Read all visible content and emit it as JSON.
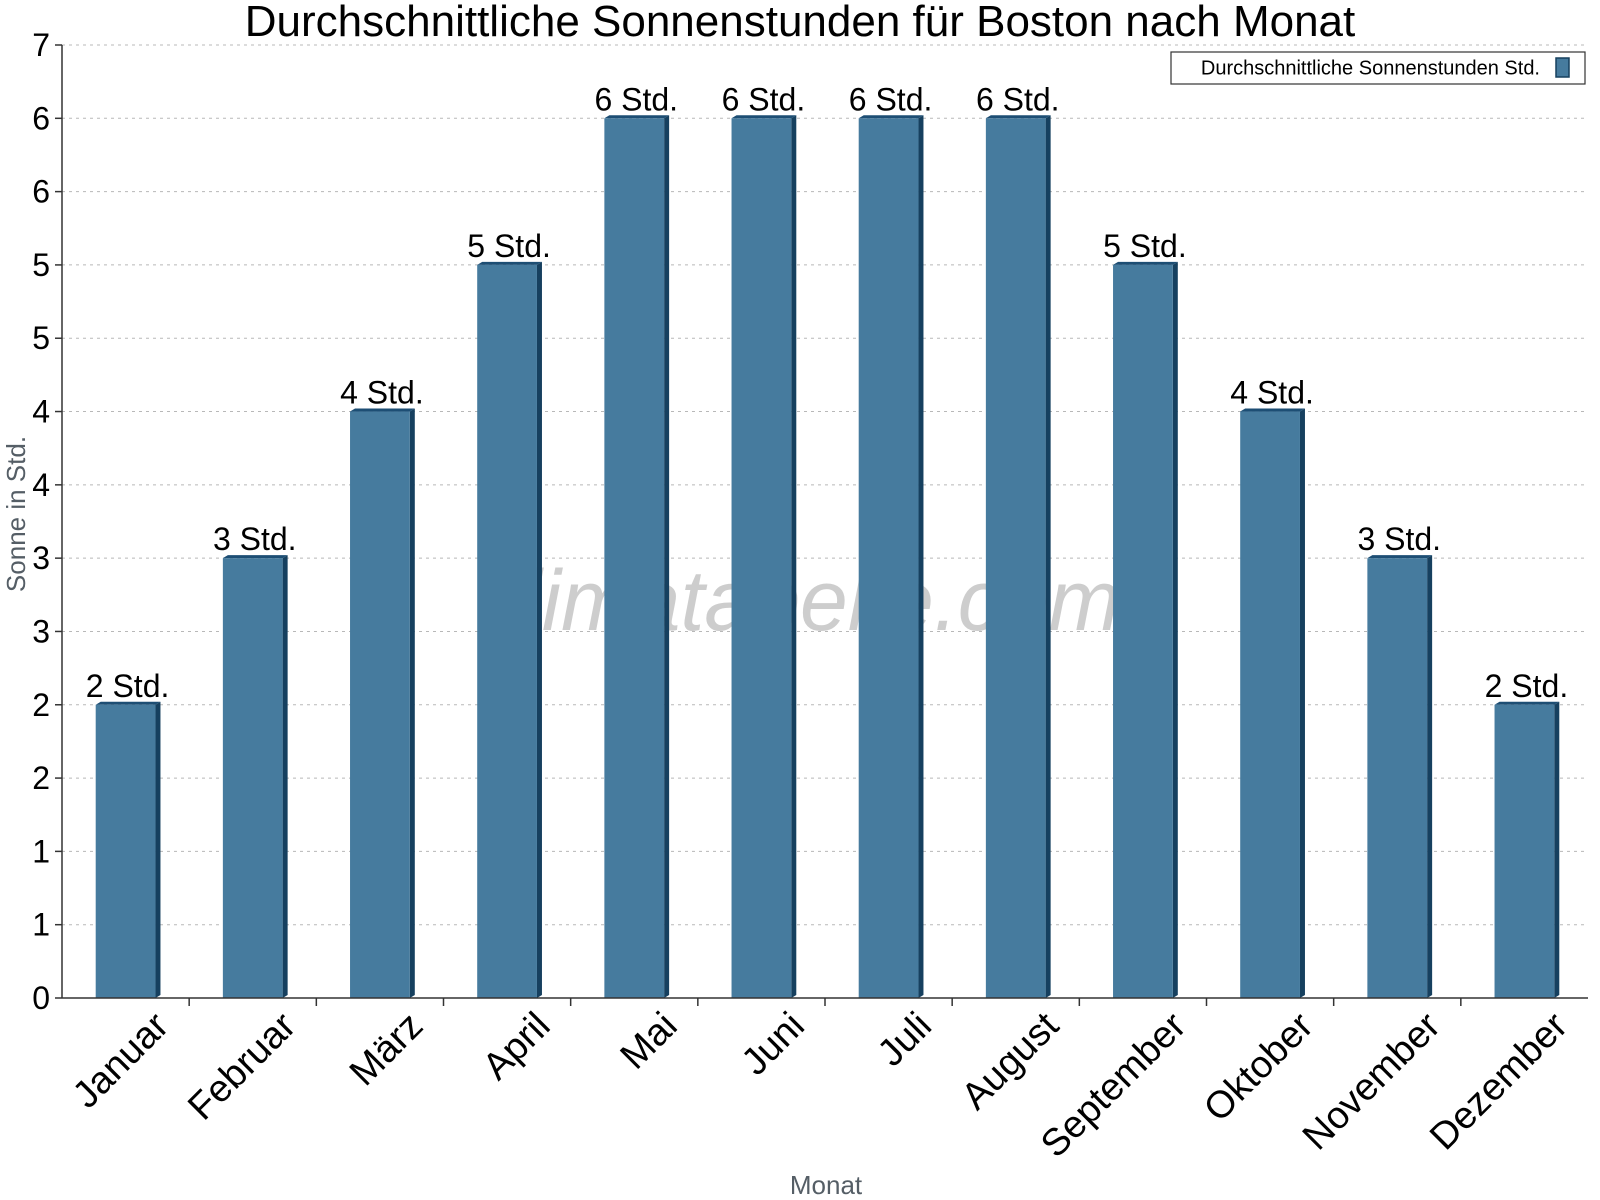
{
  "watermark": "klimatabelle.com",
  "colors": {
    "bar_face": "#467b9e",
    "bar_top": "#1d4e74",
    "bar_side": "#16405f"
  },
  "chart_data": {
    "type": "bar",
    "title": "Durchschnittliche Sonnenstunden für Boston nach Monat",
    "xlabel": "Monat",
    "ylabel": "Sonne in Std.",
    "ylim": [
      0,
      6.5
    ],
    "y_tick_labels": [
      "0",
      "1",
      "1",
      "2",
      "2",
      "3",
      "3",
      "4",
      "4",
      "5",
      "5",
      "6",
      "6",
      "7"
    ],
    "grid": true,
    "legend_position": "top-right",
    "categories": [
      "Januar",
      "Februar",
      "März",
      "April",
      "Mai",
      "Juni",
      "Juli",
      "August",
      "September",
      "Oktober",
      "November",
      "Dezember"
    ],
    "series": [
      {
        "name": "Durchschnittliche Sonnenstunden Std.",
        "values": [
          2,
          3,
          4,
          5,
          6,
          6,
          6,
          6,
          5,
          4,
          3,
          2
        ],
        "data_labels": [
          "2 Std.",
          "3 Std.",
          "4 Std.",
          "5 Std.",
          "6 Std.",
          "6 Std.",
          "6 Std.",
          "6 Std.",
          "5 Std.",
          "4 Std.",
          "3 Std.",
          "2 Std."
        ]
      }
    ]
  }
}
